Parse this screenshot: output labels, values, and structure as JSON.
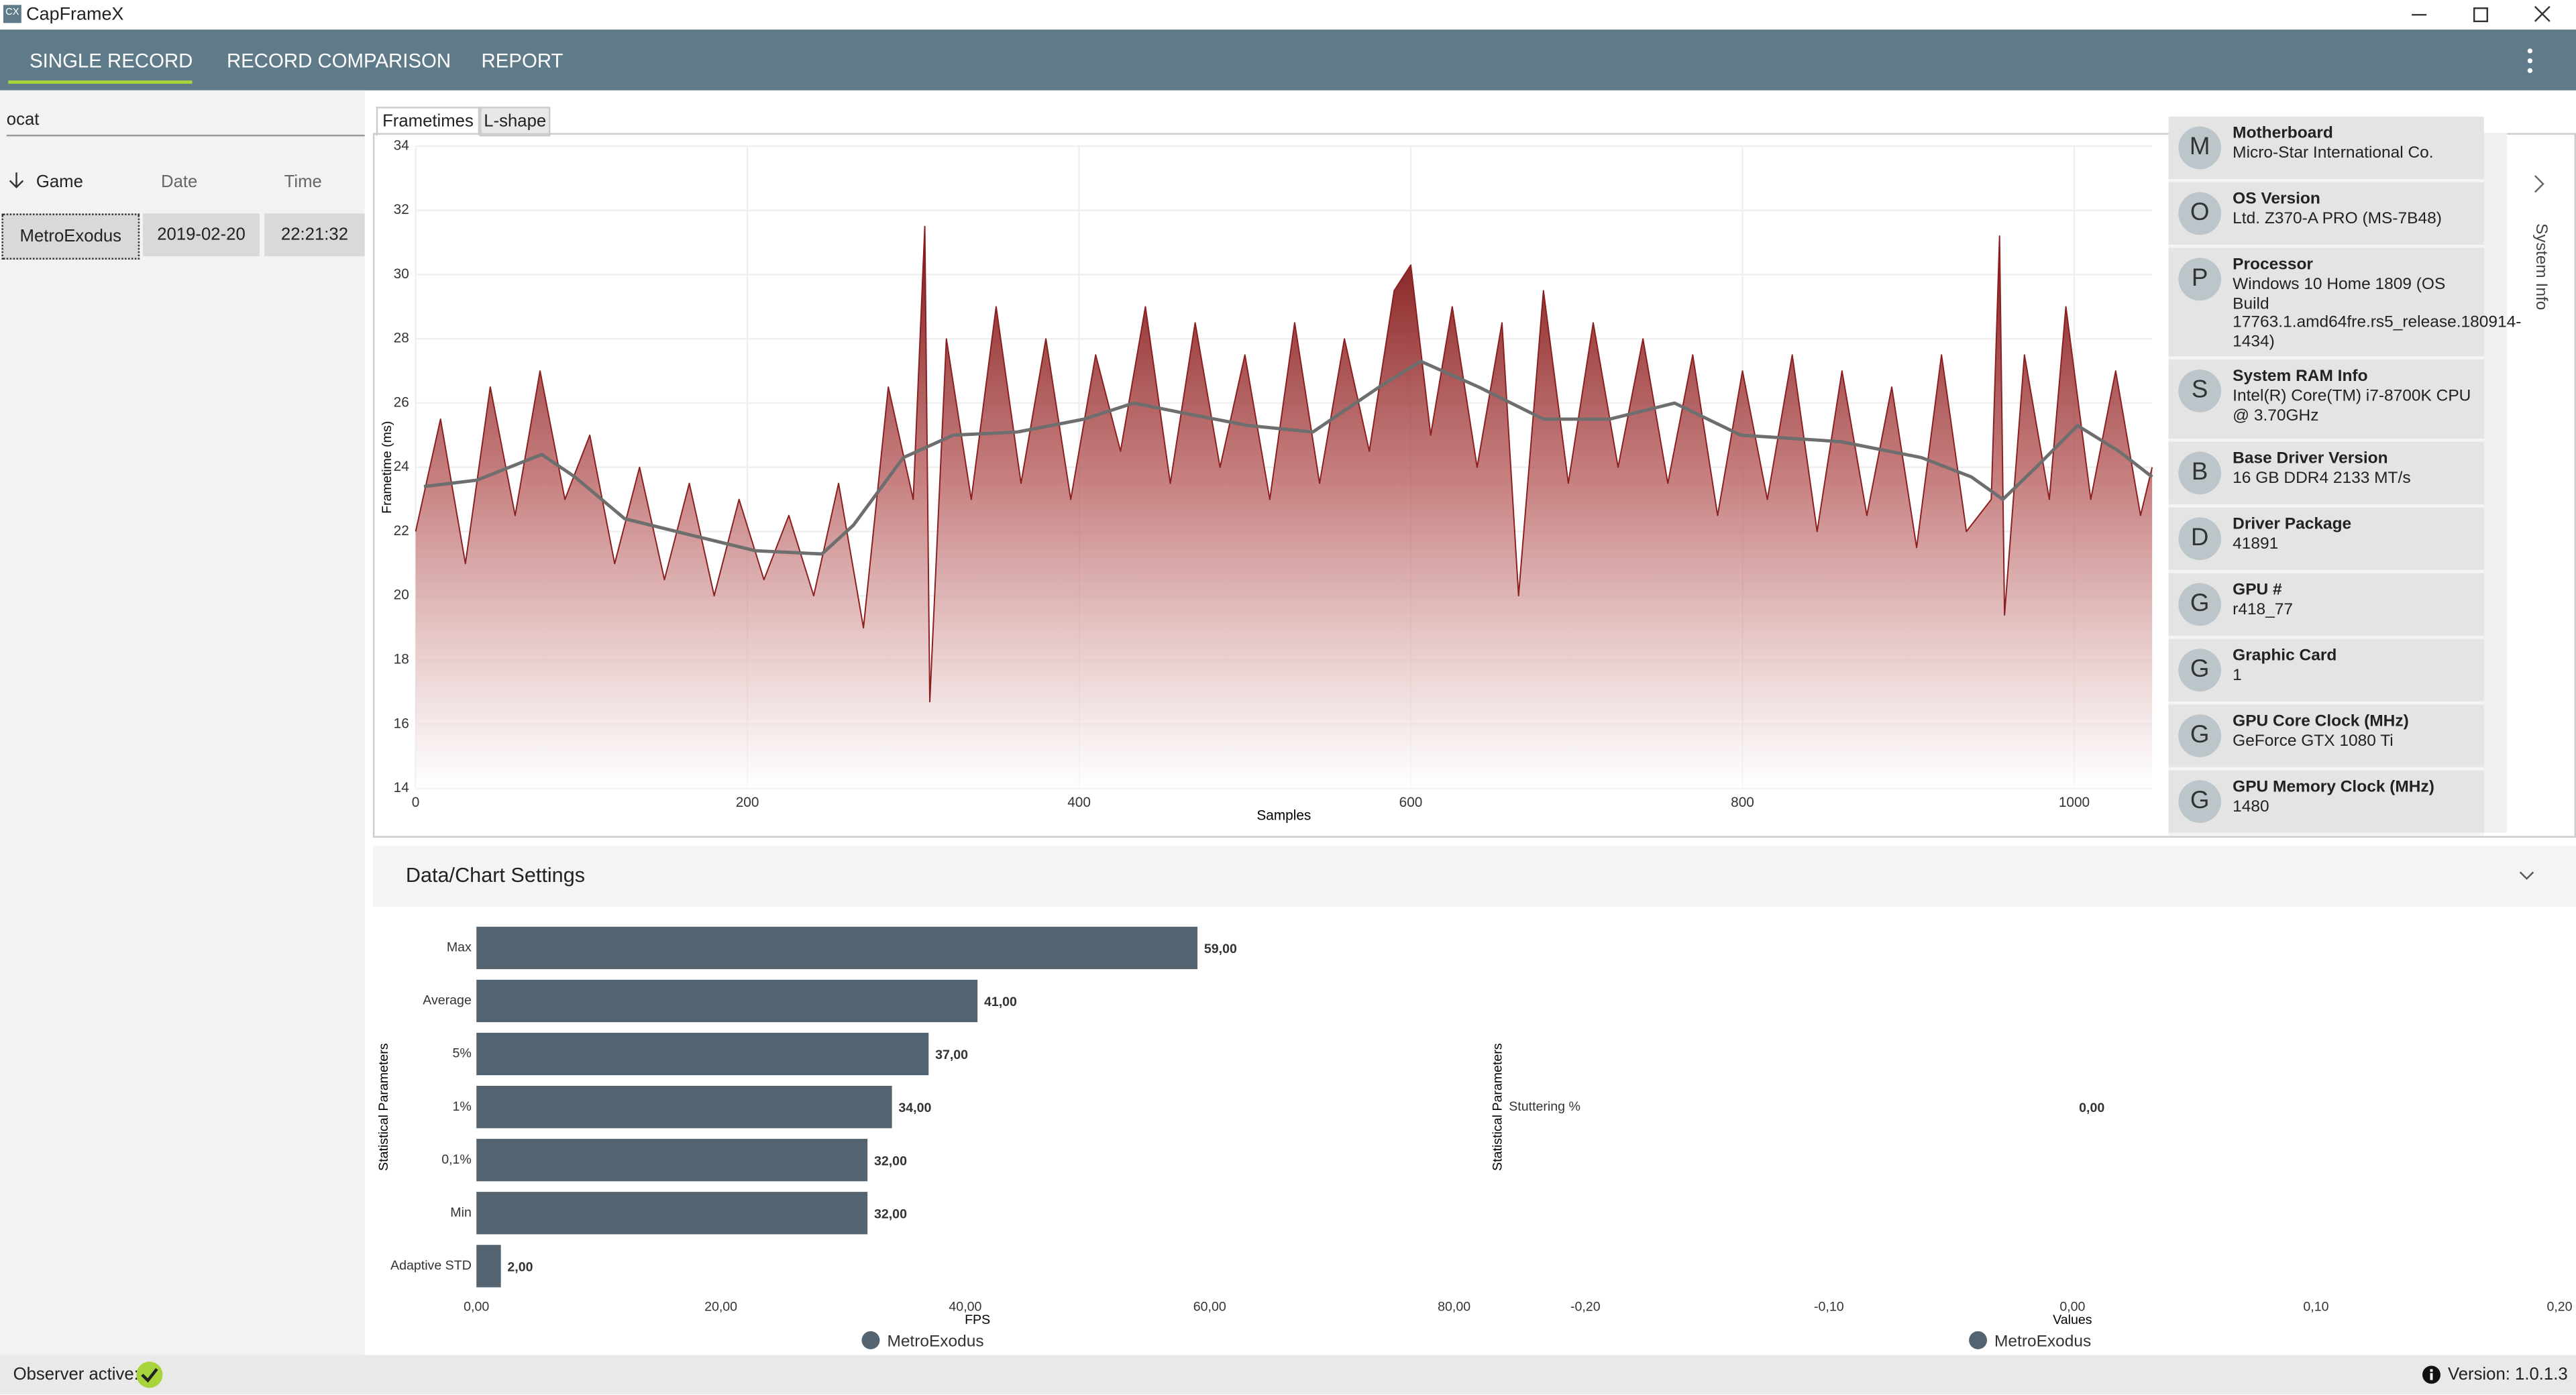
{
  "window": {
    "icon": "CX",
    "title": "CapFrameX"
  },
  "nav": {
    "tabs": [
      "SINGLE RECORD",
      "RECORD COMPARISON",
      "REPORT"
    ]
  },
  "sidebar": {
    "search": "ocat",
    "columns": [
      "Game",
      "Date",
      "Time"
    ],
    "rows": [
      [
        "MetroExodus",
        "2019-02-20",
        "22:21:32"
      ]
    ]
  },
  "chart_tabs": [
    "Frametimes",
    "L-shape"
  ],
  "system_info": {
    "label": "System Info",
    "items": [
      {
        "icon": "M",
        "title": "Motherboard",
        "value": "Micro-Star International Co."
      },
      {
        "icon": "O",
        "title": "OS Version",
        "value": "Ltd. Z370-A PRO (MS-7B48)"
      },
      {
        "icon": "P",
        "title": "Processor",
        "value": "Windows 10 Home 1809 (OS Build 17763.1.amd64fre.rs5_release.180914-1434)"
      },
      {
        "icon": "S",
        "title": "System RAM Info",
        "value": "Intel(R) Core(TM) i7-8700K CPU @ 3.70GHz"
      },
      {
        "icon": "B",
        "title": "Base Driver Version",
        "value": "16 GB DDR4 2133 MT/s"
      },
      {
        "icon": "D",
        "title": "Driver Package",
        "value": "41891"
      },
      {
        "icon": "G",
        "title": "GPU #",
        "value": "r418_77"
      },
      {
        "icon": "G",
        "title": "Graphic Card",
        "value": "1"
      },
      {
        "icon": "G",
        "title": "GPU Core Clock (MHz)",
        "value": "GeForce GTX 1080 Ti"
      },
      {
        "icon": "G",
        "title": "GPU Memory Clock (MHz)",
        "value": "1480"
      }
    ]
  },
  "settings": {
    "title": "Data/Chart Settings"
  },
  "status": {
    "observer": "Observer active:",
    "version": "Version: 1.0.1.3"
  },
  "chart_data": [
    {
      "type": "line",
      "y_label": "Frametime (ms)",
      "x_label": "Samples",
      "xlim": [
        0,
        1047
      ],
      "ylim": [
        14,
        34
      ],
      "xticks": [
        0,
        200,
        400,
        600,
        800,
        1000
      ],
      "yticks": [
        14,
        16,
        18,
        20,
        22,
        24,
        26,
        28,
        30,
        32,
        34
      ],
      "grid": true,
      "series": [
        {
          "color": "#8b1e1e",
          "area": true,
          "x": [
            0,
            15,
            30,
            45,
            60,
            75,
            90,
            105,
            120,
            135,
            150,
            165,
            180,
            195,
            210,
            225,
            240,
            255,
            270,
            285,
            300,
            307,
            310,
            320,
            335,
            350,
            365,
            380,
            395,
            410,
            425,
            440,
            455,
            470,
            485,
            500,
            515,
            530,
            545,
            560,
            575,
            590,
            600,
            612,
            625,
            640,
            655,
            665,
            680,
            695,
            710,
            725,
            740,
            755,
            770,
            785,
            800,
            815,
            830,
            845,
            860,
            875,
            890,
            905,
            920,
            935,
            950,
            955,
            958,
            970,
            985,
            995,
            1010,
            1025,
            1040,
            1047
          ],
          "values": [
            22.0,
            25.5,
            21.0,
            26.5,
            22.5,
            27.0,
            23.0,
            25.0,
            21.0,
            24.0,
            20.5,
            23.5,
            20.0,
            23.0,
            20.5,
            22.5,
            20.0,
            23.5,
            19.0,
            26.5,
            23.0,
            31.5,
            16.7,
            28.0,
            23.0,
            29.0,
            23.5,
            28.0,
            23.0,
            27.5,
            24.5,
            29.0,
            23.5,
            28.5,
            24.0,
            27.5,
            23.0,
            28.5,
            23.5,
            28.0,
            24.5,
            29.5,
            30.3,
            25.0,
            29.0,
            24.0,
            28.5,
            20.0,
            29.5,
            23.5,
            28.5,
            24.0,
            28.0,
            23.5,
            27.5,
            22.5,
            27.0,
            23.0,
            27.5,
            22.0,
            27.0,
            22.5,
            26.5,
            21.5,
            27.5,
            22.0,
            23.0,
            31.2,
            19.4,
            27.5,
            23.0,
            29.0,
            23.0,
            27.0,
            22.5,
            24.0
          ]
        },
        {
          "color": "#6e6e6e",
          "x": [
            5,
            37,
            76,
            96,
            126,
            165,
            205,
            245,
            264,
            294,
            324,
            363,
            403,
            433,
            462,
            502,
            541,
            581,
            606,
            641,
            680,
            720,
            759,
            799,
            859,
            908,
            938,
            957,
            977,
            1002,
            1027,
            1047
          ],
          "values": [
            23.4,
            23.6,
            24.4,
            23.7,
            22.4,
            21.9,
            21.4,
            21.3,
            22.2,
            24.3,
            25.0,
            25.1,
            25.5,
            26.0,
            25.7,
            25.3,
            25.1,
            26.5,
            27.3,
            26.5,
            25.5,
            25.5,
            26.0,
            25.0,
            24.8,
            24.3,
            23.7,
            23.0,
            24.0,
            25.3,
            24.5,
            23.7
          ]
        }
      ]
    },
    {
      "type": "bar",
      "horizontal": true,
      "y_label": "Statistical Parameters",
      "x_label": "FPS",
      "categories": [
        "Max",
        "Average",
        "5%",
        "1%",
        "0,1%",
        "Min",
        "Adaptive STD"
      ],
      "series": [
        {
          "name": "MetroExodus",
          "color": "#536470",
          "values": [
            59,
            41,
            37,
            34,
            32,
            32,
            2
          ],
          "value_labels": [
            "59,00",
            "41,00",
            "37,00",
            "34,00",
            "32,00",
            "32,00",
            "2,00"
          ]
        }
      ],
      "xlim": [
        0,
        82
      ],
      "xticks": [
        {
          "value": 0,
          "label": "0,00"
        },
        {
          "value": 20,
          "label": "20,00"
        },
        {
          "value": 40,
          "label": "40,00"
        },
        {
          "value": 60,
          "label": "60,00"
        },
        {
          "value": 80,
          "label": "80,00"
        }
      ]
    },
    {
      "type": "bar",
      "horizontal": true,
      "y_label": "Statistical Parameters",
      "x_label": "Values",
      "categories": [
        "Stuttering %"
      ],
      "series": [
        {
          "name": "MetroExodus",
          "color": "#536470",
          "values": [
            0
          ],
          "value_labels": [
            "0,00"
          ]
        }
      ],
      "xlim": [
        -0.2,
        0.2
      ],
      "xticks": [
        {
          "value": -0.2,
          "label": "-0,20"
        },
        {
          "value": -0.1,
          "label": "-0,10"
        },
        {
          "value": 0,
          "label": "0,00"
        },
        {
          "value": 0.1,
          "label": "0,10"
        },
        {
          "value": 0.2,
          "label": "0,20"
        }
      ]
    }
  ]
}
